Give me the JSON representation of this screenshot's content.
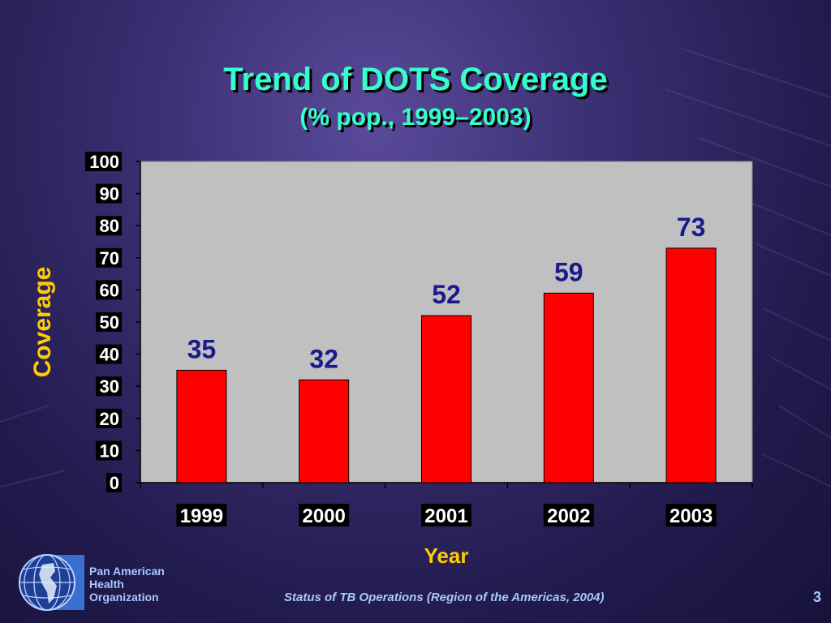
{
  "slide": {
    "title": "Trend of DOTS Coverage",
    "subtitle": "(% pop., 1999–2003)",
    "org_lines": [
      "Pan American",
      "Health",
      "Organization"
    ],
    "footer": "Status of TB Operations (Region of the Americas, 2004)",
    "page_number": "3"
  },
  "colors": {
    "bar": "#ff0000",
    "plot_bg": "#c0c0c0",
    "title": "#33ffcc",
    "axis_label": "#ffcc00",
    "data_label": "#1a1a8c",
    "tick_bg": "#000000",
    "tick_text": "#ffffff"
  },
  "chart_data": {
    "type": "bar",
    "categories": [
      "1999",
      "2000",
      "2001",
      "2002",
      "2003"
    ],
    "values": [
      35,
      32,
      52,
      59,
      73
    ],
    "data_labels": [
      "35",
      "32",
      "52",
      "59",
      "73"
    ],
    "xlabel": "Year",
    "ylabel": "Coverage",
    "ylim": [
      0,
      100
    ],
    "yticks": [
      0,
      10,
      20,
      30,
      40,
      50,
      60,
      70,
      80,
      90,
      100
    ],
    "grid": false,
    "legend": "none"
  }
}
